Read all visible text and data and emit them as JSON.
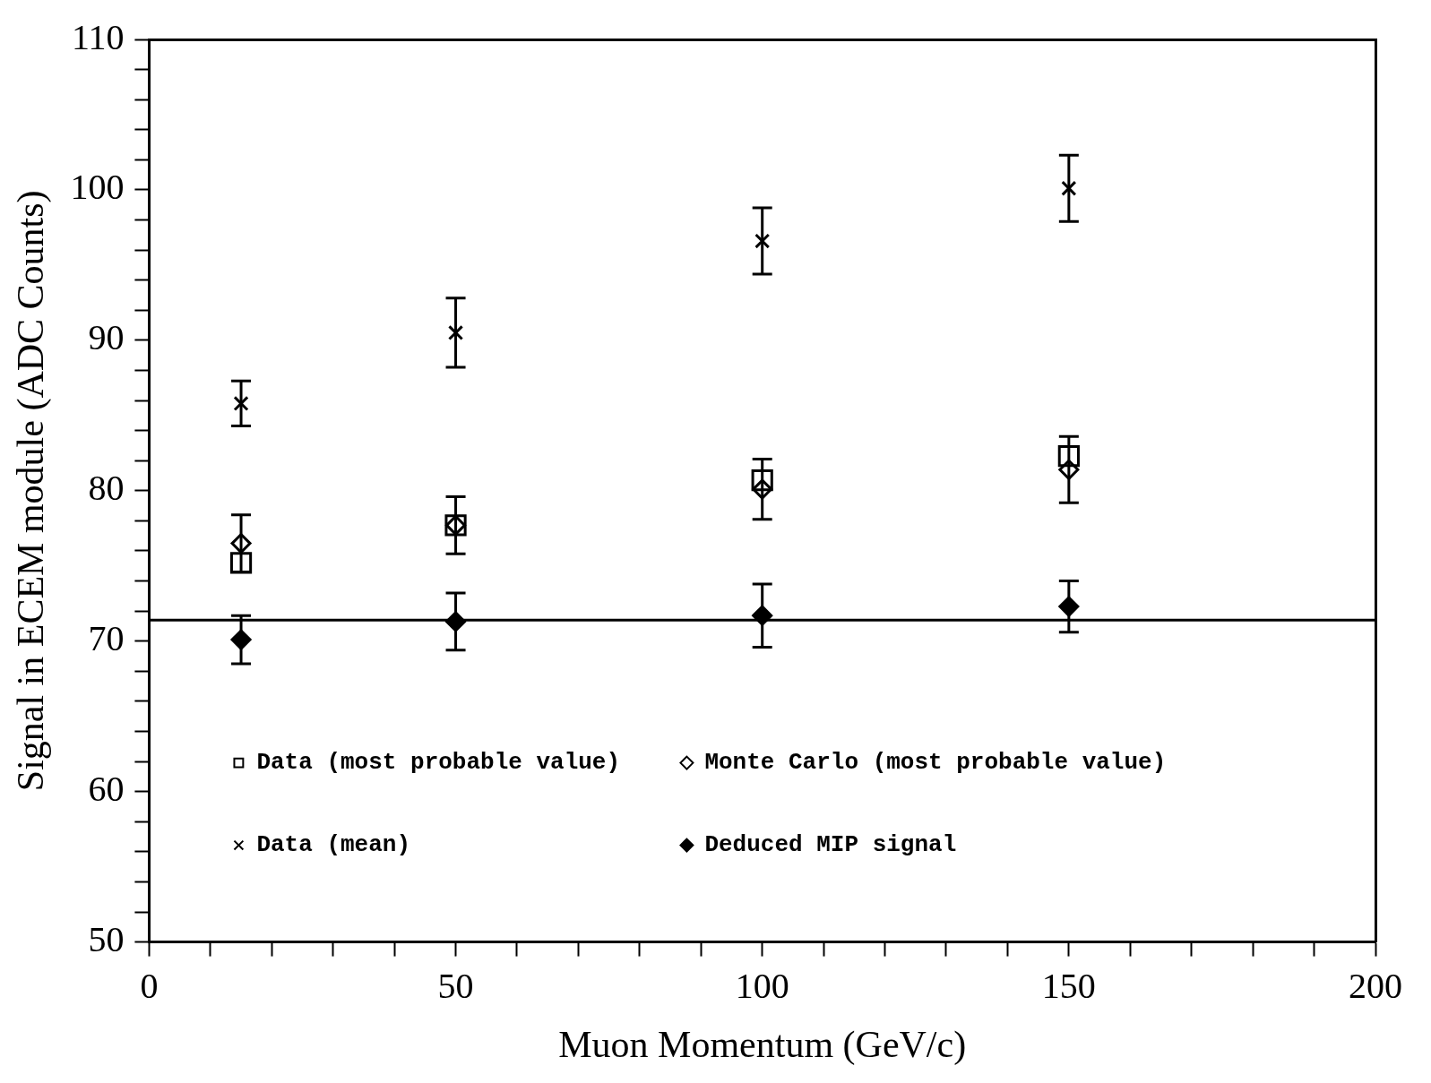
{
  "chart_data": {
    "type": "scatter",
    "xlabel": "Muon Momentum (GeV/c)",
    "ylabel": "Signal in ECEM module (ADC Counts)",
    "x": [
      15,
      50,
      100,
      150
    ],
    "series": [
      {
        "name": "Data (most probable value)",
        "color": "#000000",
        "marker": "square",
        "values": [
          75.2,
          77.7,
          80.7,
          82.3
        ]
      },
      {
        "name": "Monte Carlo (most probable value)",
        "color": "#000000",
        "marker": "diamond",
        "values": [
          76.5,
          77.7,
          80.1,
          81.4
        ],
        "errors": [
          1.9,
          1.9,
          2.0,
          2.2
        ]
      },
      {
        "name": "Data (mean)",
        "color": "#000000",
        "marker": "cross",
        "values": [
          85.8,
          90.5,
          96.6,
          100.1
        ],
        "errors": [
          1.5,
          2.3,
          2.2,
          2.2
        ]
      },
      {
        "name": "Deduced MIP signal",
        "color": "#000000",
        "marker": "diamond",
        "values": [
          70.1,
          71.3,
          71.7,
          72.3
        ],
        "errors": [
          1.6,
          1.9,
          2.1,
          1.7
        ]
      }
    ],
    "ref_lines": [
      {
        "axis": "y",
        "value": 71.4,
        "color": "#000000"
      }
    ],
    "xlim": [
      0,
      200
    ],
    "xticks": [
      0,
      {
        "value": 10,
        "label": null
      },
      {
        "value": 20,
        "label": null
      },
      {
        "value": 30,
        "label": null
      },
      {
        "value": 40,
        "label": null
      },
      50,
      {
        "value": 60,
        "label": null
      },
      {
        "value": 70,
        "label": null
      },
      {
        "value": 80,
        "label": null
      },
      {
        "value": 90,
        "label": null
      },
      100,
      {
        "value": 110,
        "label": null
      },
      {
        "value": 120,
        "label": null
      },
      {
        "value": 130,
        "label": null
      },
      {
        "value": 140,
        "label": null
      },
      150,
      {
        "value": 160,
        "label": null
      },
      {
        "value": 170,
        "label": null
      },
      {
        "value": 180,
        "label": null
      },
      {
        "value": 190,
        "label": null
      },
      200
    ],
    "ylim": [
      50,
      110
    ],
    "yticks": [
      50,
      {
        "value": 52,
        "label": null
      },
      {
        "value": 54,
        "label": null
      },
      {
        "value": 56,
        "label": null
      },
      {
        "value": 58,
        "label": null
      },
      60,
      {
        "value": 62,
        "label": null
      },
      {
        "value": 64,
        "label": null
      },
      {
        "value": 66,
        "label": null
      },
      {
        "value": 68,
        "label": null
      },
      70,
      {
        "value": 72,
        "label": null
      },
      {
        "value": 74,
        "label": null
      },
      {
        "value": 76,
        "label": null
      },
      {
        "value": 78,
        "label": null
      },
      80,
      {
        "value": 82,
        "label": null
      },
      {
        "value": 84,
        "label": null
      },
      {
        "value": 86,
        "label": null
      },
      {
        "value": 88,
        "label": null
      },
      90,
      {
        "value": 92,
        "label": null
      },
      {
        "value": 94,
        "label": null
      },
      {
        "value": 96,
        "label": null
      },
      {
        "value": 98,
        "label": null
      },
      100,
      {
        "value": 102,
        "label": null
      },
      {
        "value": 104,
        "label": null
      },
      {
        "value": 106,
        "label": null
      },
      {
        "value": 108,
        "label": null
      },
      110
    ],
    "grid": false,
    "legend": "bottom"
  }
}
